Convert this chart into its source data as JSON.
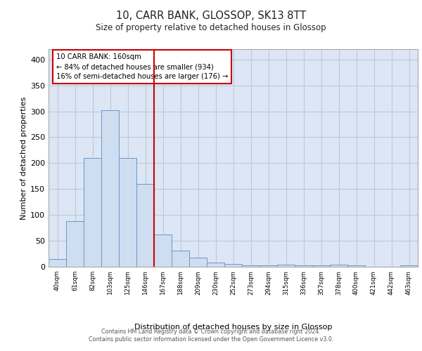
{
  "title": "10, CARR BANK, GLOSSOP, SK13 8TT",
  "subtitle": "Size of property relative to detached houses in Glossop",
  "xlabel": "Distribution of detached houses by size in Glossop",
  "ylabel": "Number of detached properties",
  "categories": [
    "40sqm",
    "61sqm",
    "82sqm",
    "103sqm",
    "125sqm",
    "146sqm",
    "167sqm",
    "188sqm",
    "209sqm",
    "230sqm",
    "252sqm",
    "273sqm",
    "294sqm",
    "315sqm",
    "336sqm",
    "357sqm",
    "378sqm",
    "400sqm",
    "421sqm",
    "442sqm",
    "463sqm"
  ],
  "values": [
    15,
    88,
    210,
    302,
    210,
    160,
    63,
    31,
    18,
    8,
    5,
    3,
    3,
    4,
    3,
    3,
    4,
    3,
    0,
    0,
    3
  ],
  "bar_color": "#cfddf0",
  "bar_edge_color": "#6699cc",
  "vline_x": 6.0,
  "vline_color": "#cc0000",
  "annotation_title": "10 CARR BANK: 160sqm",
  "annotation_line1": "← 84% of detached houses are smaller (934)",
  "annotation_line2": "16% of semi-detached houses are larger (176) →",
  "annotation_box_color": "#ffffff",
  "annotation_box_edge": "#cc0000",
  "ylim": [
    0,
    420
  ],
  "yticks": [
    0,
    50,
    100,
    150,
    200,
    250,
    300,
    350,
    400
  ],
  "grid_color": "#c0c8d8",
  "background_color": "#dce6f5",
  "footer_line1": "Contains HM Land Registry data © Crown copyright and database right 2024.",
  "footer_line2": "Contains public sector information licensed under the Open Government Licence v3.0."
}
